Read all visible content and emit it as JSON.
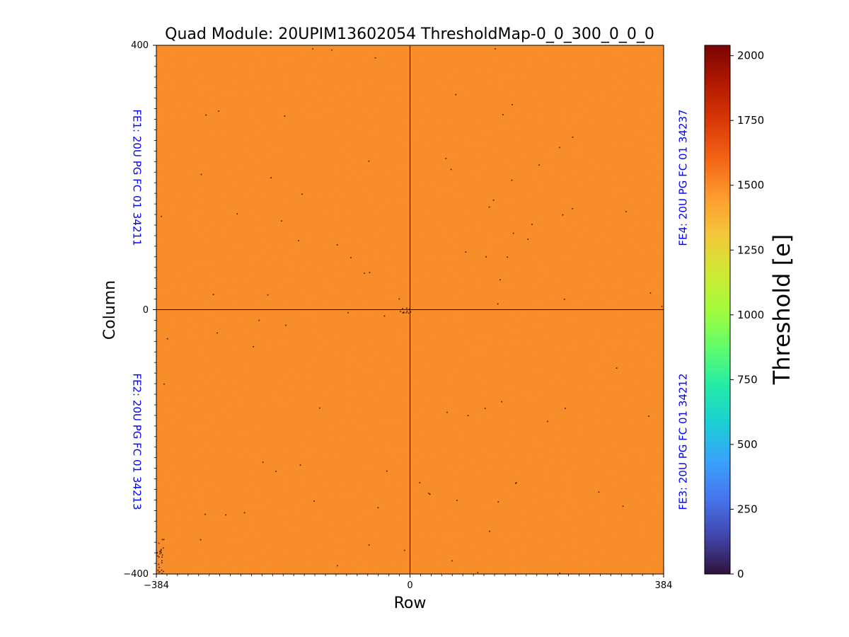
{
  "chart_data": {
    "type": "heatmap",
    "title": "Quad Module: 20UPIM13602054 ThresholdMap-0_0_300_0_0_0",
    "xlabel": "Row",
    "ylabel": "Column",
    "xlim": [
      -384,
      384
    ],
    "ylim": [
      -400,
      400
    ],
    "x_ticks": [
      "−384",
      "0",
      "384"
    ],
    "y_ticks": [
      "400",
      "0",
      "−400"
    ],
    "grid": false,
    "quadrant_labels": [
      {
        "position": "top-left",
        "text": "FE1: 20U PG FC 01 34211",
        "color": "#0000ff"
      },
      {
        "position": "bottom-left",
        "text": "FE2: 20U PG FC 01 34213",
        "color": "#0000ff"
      },
      {
        "position": "bottom-right",
        "text": "FE3: 20U PG FC 01 34212",
        "color": "#0000ff"
      },
      {
        "position": "top-right",
        "text": "FE4: 20U PG FC 01 34237",
        "color": "#0000ff"
      }
    ],
    "fill_value": 1500,
    "fill_color": "#f98d2a",
    "colorbar": {
      "label": "Threshold [e]",
      "range": [
        0,
        2040
      ],
      "colormap": "turbo",
      "ticks": [
        "0",
        "250",
        "500",
        "750",
        "1000",
        "1250",
        "1500",
        "1750",
        "2000"
      ],
      "tick_values": [
        0,
        250,
        500,
        750,
        1000,
        1250,
        1500,
        1750,
        2000
      ],
      "stops": [
        "#30123b",
        "#4145ab",
        "#4675ed",
        "#39a2fc",
        "#1bcfd4",
        "#24eca6",
        "#61fc6c",
        "#a4fc3b",
        "#d1e834",
        "#f3c63a",
        "#fe9b2d",
        "#f36315",
        "#d93806",
        "#b11901",
        "#7a0403"
      ]
    }
  }
}
